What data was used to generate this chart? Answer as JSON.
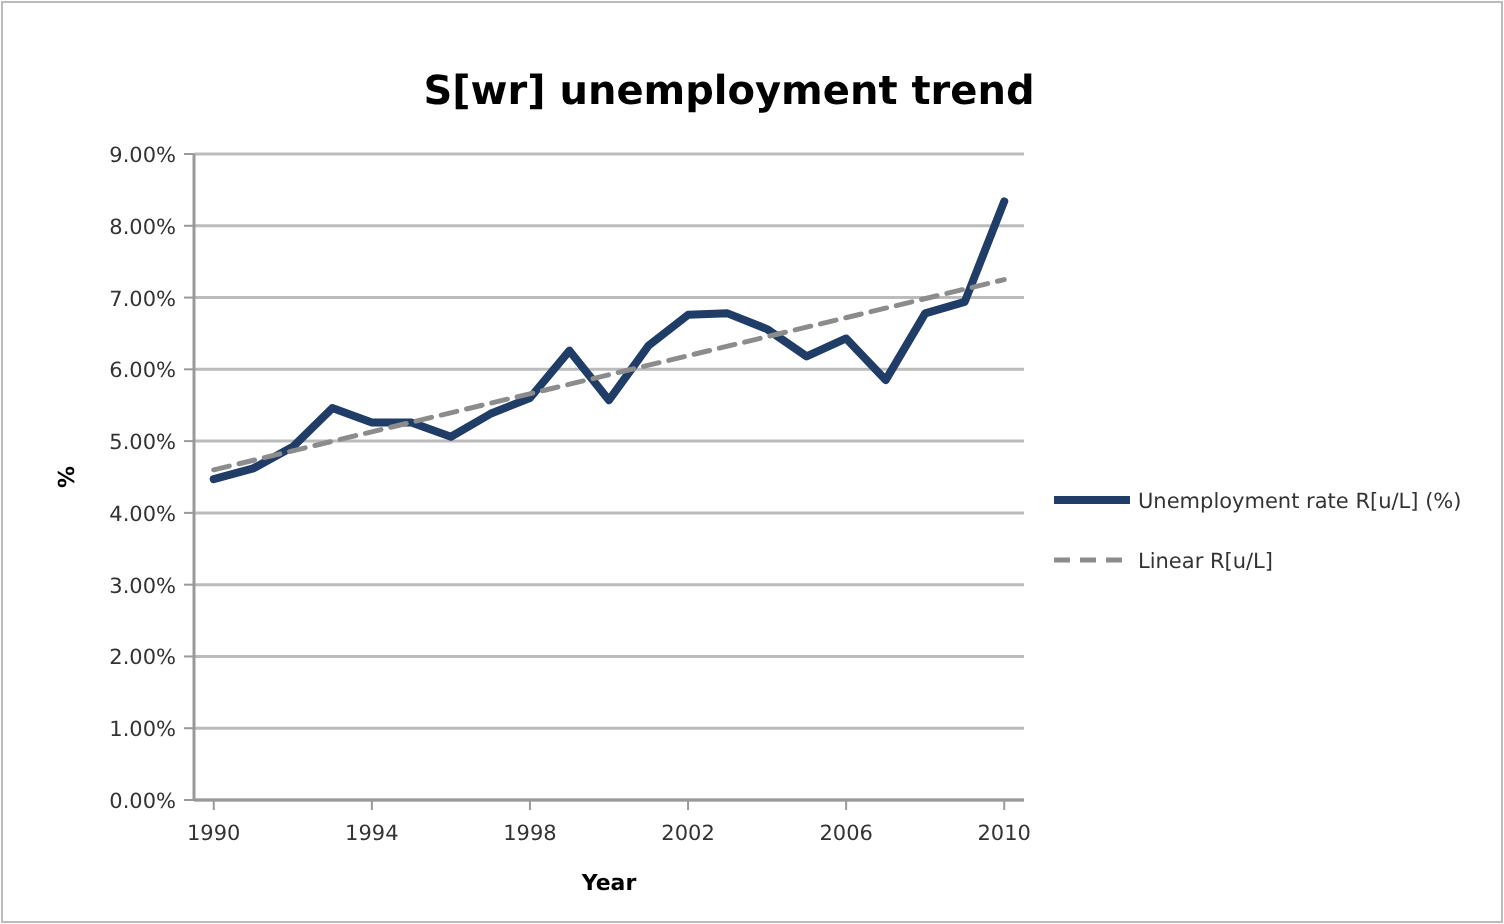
{
  "chart_data": {
    "type": "line",
    "title": "S[wr] unemployment trend",
    "xlabel": "Year",
    "ylabel": "%",
    "xlim": [
      1989.5,
      2010.5
    ],
    "xticks": [
      1990,
      1994,
      1998,
      2002,
      2006,
      2010
    ],
    "ylim": [
      0,
      9
    ],
    "yticks": [
      {
        "value": 0,
        "label": "0.00%"
      },
      {
        "value": 1,
        "label": "1.00%"
      },
      {
        "value": 2,
        "label": "2.00%"
      },
      {
        "value": 3,
        "label": "3.00%"
      },
      {
        "value": 4,
        "label": "4.00%"
      },
      {
        "value": 5,
        "label": "5.00%"
      },
      {
        "value": 6,
        "label": "6.00%"
      },
      {
        "value": 7,
        "label": "7.00%"
      },
      {
        "value": 8,
        "label": "8.00%"
      },
      {
        "value": 9,
        "label": "9.00%"
      }
    ],
    "grid": "y",
    "legend": "right",
    "series": [
      {
        "name": "Unemployment rate R[u/L] (%)",
        "color": "#1f3d66",
        "line_style": "solid",
        "x": [
          1990,
          1991,
          1992,
          1993,
          1994,
          1995,
          1996,
          1997,
          1998,
          1999,
          2000,
          2001,
          2002,
          2003,
          2004,
          2005,
          2006,
          2007,
          2008,
          2009,
          2010
        ],
        "values": [
          4.47,
          4.62,
          4.92,
          5.46,
          5.26,
          5.26,
          5.06,
          5.38,
          5.6,
          6.26,
          5.57,
          6.33,
          6.76,
          6.78,
          6.56,
          6.18,
          6.43,
          5.85,
          6.78,
          6.94,
          8.34
        ]
      },
      {
        "name": "Linear R[u/L]",
        "color": "#8c8c8c",
        "line_style": "dashed",
        "x": [
          1990,
          2010
        ],
        "values": [
          4.6,
          7.25
        ]
      }
    ]
  }
}
